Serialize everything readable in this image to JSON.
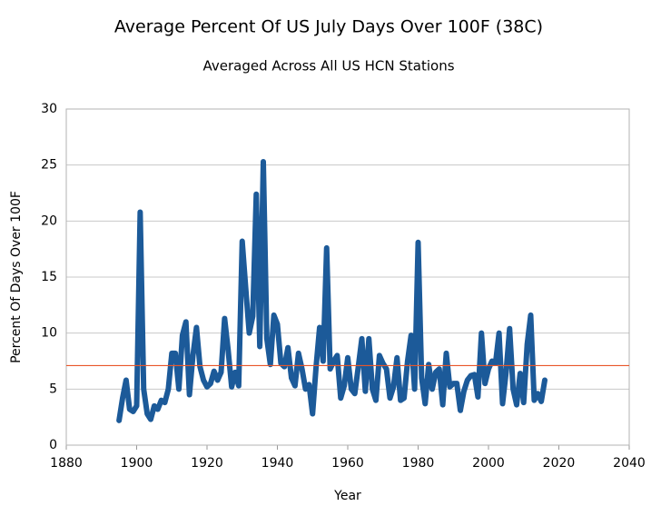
{
  "chart_data": {
    "type": "line",
    "title": "Average Percent Of US July Days Over 100F (38C)",
    "subtitle": "Averaged Across All US HCN Stations",
    "xlabel": "Year",
    "ylabel": "Percent Of Days Over 100F",
    "x": [
      1895,
      1896,
      1897,
      1898,
      1899,
      1900,
      1901,
      1902,
      1903,
      1904,
      1905,
      1906,
      1907,
      1908,
      1909,
      1910,
      1911,
      1912,
      1913,
      1914,
      1915,
      1916,
      1917,
      1918,
      1919,
      1920,
      1921,
      1922,
      1923,
      1924,
      1925,
      1926,
      1927,
      1928,
      1929,
      1930,
      1931,
      1932,
      1933,
      1934,
      1935,
      1936,
      1937,
      1938,
      1939,
      1940,
      1941,
      1942,
      1943,
      1944,
      1945,
      1946,
      1947,
      1948,
      1949,
      1950,
      1951,
      1952,
      1953,
      1954,
      1955,
      1956,
      1957,
      1958,
      1959,
      1960,
      1961,
      1962,
      1963,
      1964,
      1965,
      1966,
      1967,
      1968,
      1969,
      1970,
      1971,
      1972,
      1973,
      1974,
      1975,
      1976,
      1977,
      1978,
      1979,
      1980,
      1981,
      1982,
      1983,
      1984,
      1985,
      1986,
      1987,
      1988,
      1989,
      1990,
      1991,
      1992,
      1993,
      1994,
      1995,
      1996,
      1997,
      1998,
      1999,
      2000,
      2001,
      2002,
      2003,
      2004,
      2005,
      2006,
      2007,
      2008,
      2009,
      2010,
      2011,
      2012,
      2013,
      2014,
      2015,
      2016
    ],
    "series": [
      {
        "color": "#1c5a99",
        "values": [
          2.2,
          4.2,
          5.8,
          3.2,
          3.0,
          3.5,
          20.8,
          5.0,
          2.8,
          2.3,
          3.5,
          3.2,
          4.0,
          3.8,
          5.0,
          8.2,
          8.2,
          5.0,
          9.8,
          11.0,
          4.5,
          8.0,
          10.5,
          7.0,
          5.8,
          5.2,
          5.5,
          6.6,
          5.8,
          6.5,
          11.3,
          8.5,
          5.2,
          6.5,
          5.3,
          18.2,
          14.0,
          10.0,
          11.5,
          22.4,
          8.8,
          25.3,
          9.5,
          7.2,
          11.6,
          10.8,
          7.3,
          7.0,
          8.7,
          6.0,
          5.3,
          8.2,
          6.8,
          5.0,
          5.4,
          2.8,
          7.0,
          10.5,
          7.5,
          17.6,
          6.8,
          7.5,
          8.0,
          4.2,
          5.3,
          7.8,
          5.0,
          4.6,
          7.0,
          9.5,
          4.8,
          9.5,
          5.0,
          4.0,
          8.0,
          7.3,
          6.8,
          4.2,
          5.2,
          7.8,
          4.0,
          4.2,
          7.5,
          9.8,
          5.0,
          18.1,
          6.0,
          3.7,
          7.2,
          5.0,
          6.5,
          6.8,
          3.6,
          8.2,
          5.2,
          5.5,
          5.5,
          3.1,
          4.8,
          5.8,
          6.2,
          6.3,
          4.3,
          10.0,
          5.5,
          6.8,
          7.5,
          7.3,
          10.0,
          3.7,
          6.5,
          10.4,
          5.0,
          3.6,
          6.4,
          3.8,
          9.0,
          11.6,
          4.0,
          4.6,
          3.9,
          5.8
        ]
      }
    ],
    "hlines": [
      {
        "value": 7.1,
        "color": "#e8562a"
      }
    ],
    "xlim": [
      1880,
      2040
    ],
    "xticks": [
      1880,
      1900,
      1920,
      1940,
      1960,
      1980,
      2000,
      2020,
      2040
    ],
    "ylim": [
      0,
      30
    ],
    "yticks": [
      0,
      5,
      10,
      15,
      20,
      25,
      30
    ],
    "grid": true
  }
}
